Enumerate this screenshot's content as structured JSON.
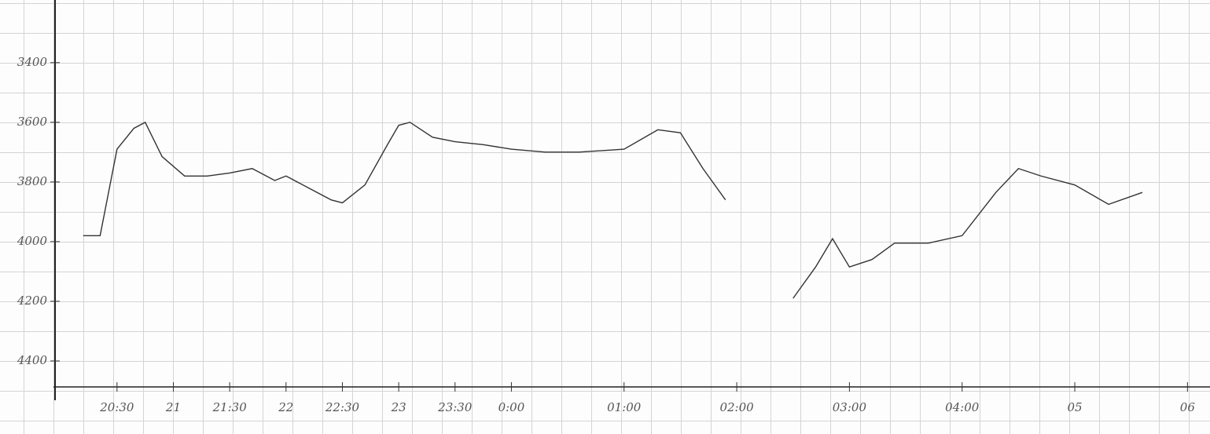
{
  "chart_data": {
    "type": "line",
    "x": [
      20.2,
      20.35,
      20.5,
      20.65,
      20.75,
      20.9,
      21.1,
      21.3,
      21.5,
      21.7,
      21.9,
      22.0,
      22.2,
      22.4,
      22.5,
      22.7,
      22.9,
      23.0,
      23.1,
      23.3,
      23.5,
      23.75,
      24.0,
      24.3,
      24.6,
      25.0,
      25.3,
      25.5,
      25.7,
      25.9,
      26.2,
      26.5,
      26.7,
      26.85,
      27.0,
      27.2,
      27.4,
      27.7,
      28.0,
      28.3,
      28.5,
      28.7,
      29.0,
      29.3,
      29.6
    ],
    "series": [
      {
        "color": "#333333",
        "values": [
          3980,
          3980,
          3690,
          3620,
          3600,
          3715,
          3780,
          3780,
          3770,
          3755,
          3795,
          3780,
          3820,
          3860,
          3870,
          3810,
          3675,
          3610,
          3600,
          3650,
          3665,
          3675,
          3690,
          3700,
          3700,
          3690,
          3625,
          3635,
          3755,
          3860,
          null,
          4190,
          4085,
          3990,
          4085,
          4060,
          4005,
          4005,
          3980,
          3835,
          3755,
          3780,
          3810,
          3875,
          3835
        ]
      }
    ],
    "xlim": [
      19.95,
      30.2
    ],
    "xticks": [
      {
        "value": 20.5,
        "label": "20:30"
      },
      21,
      {
        "value": 21.5,
        "label": "21:30"
      },
      22,
      {
        "value": 22.5,
        "label": "22:30"
      },
      23,
      {
        "value": 23.5,
        "label": "23:30"
      },
      {
        "value": 24,
        "label": "0:00"
      },
      {
        "value": 25,
        "label": "01:00"
      },
      {
        "value": 26,
        "label": "02:00"
      },
      {
        "value": 27,
        "label": "03:00"
      },
      {
        "value": 28,
        "label": "04:00"
      },
      {
        "value": 29,
        "label": "05"
      },
      {
        "value": 30,
        "label": "06"
      }
    ],
    "ylim": [
      3190,
      4487
    ],
    "y_inverted": true,
    "yticks": [
      3400,
      3600,
      3800,
      4000,
      4200,
      4400
    ]
  }
}
